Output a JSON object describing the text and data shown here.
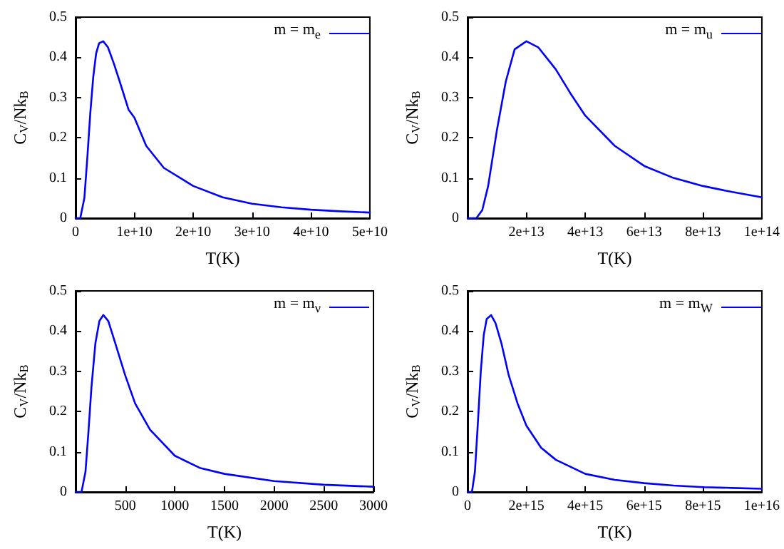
{
  "chart_data": [
    {
      "type": "line",
      "xlabel": "T(K)",
      "ylabel": "C$_{V}$/Nk$_{B}$",
      "legend": "top right",
      "grid": false,
      "marker": "none",
      "line_style": "solid",
      "xlim": [
        0,
        50000000000.0
      ],
      "xticks": [
        0,
        {
          "value": 10000000000.0,
          "label": "1e+10"
        },
        {
          "value": 20000000000.0,
          "label": "2e+10"
        },
        {
          "value": 30000000000.0,
          "label": "3e+10"
        },
        {
          "value": 40000000000.0,
          "label": "4e+10"
        },
        {
          "value": 50000000000.0,
          "label": "5e+10"
        }
      ],
      "ylim": [
        0,
        0.5
      ],
      "yticks": [
        0,
        0.1,
        0.2,
        0.3,
        0.4,
        0.5
      ],
      "series": [
        {
          "name": "m = m$_{e}$",
          "color": "#0000ff",
          "x": [
            0,
            800000000.0,
            1500000000.0,
            2000000000.0,
            2500000000.0,
            3000000000.0,
            3500000000.0,
            4000000000.0,
            4700000000.0,
            5500000000.0,
            6500000000.0,
            7500000000.0,
            9000000000.0,
            10000000000.0,
            12000000000.0,
            15000000000.0,
            20000000000.0,
            25000000000.0,
            30000000000.0,
            35000000000.0,
            40000000000.0,
            45000000000.0,
            50000000000.0
          ],
          "values": [
            0,
            0,
            0.05,
            0.15,
            0.26,
            0.35,
            0.41,
            0.435,
            0.44,
            0.425,
            0.385,
            0.34,
            0.27,
            0.25,
            0.18,
            0.125,
            0.08,
            0.052,
            0.036,
            0.027,
            0.021,
            0.017,
            0.014
          ]
        }
      ]
    },
    {
      "type": "line",
      "xlabel": "T(K)",
      "ylabel": "C$_{V}$/Nk$_{B}$",
      "legend": "top right",
      "grid": false,
      "marker": "none",
      "line_style": "solid",
      "xlim": [
        0,
        100000000000000.0
      ],
      "xticks": [
        {
          "value": 20000000000000.0,
          "label": "2e+13"
        },
        {
          "value": 40000000000000.0,
          "label": "4e+13"
        },
        {
          "value": 60000000000000.0,
          "label": "6e+13"
        },
        {
          "value": 80000000000000.0,
          "label": "8e+13"
        },
        {
          "value": 100000000000000.0,
          "label": "1e+14"
        }
      ],
      "ylim": [
        0,
        0.5
      ],
      "yticks": [
        0,
        0.1,
        0.2,
        0.3,
        0.4,
        0.5
      ],
      "series": [
        {
          "name": "m = m$_{u}$",
          "color": "#0000ff",
          "x": [
            0,
            3000000000000.0,
            5000000000000.0,
            7000000000000.0,
            10000000000000.0,
            13000000000000.0,
            16000000000000.0,
            20000000000000.0,
            24000000000000.0,
            30000000000000.0,
            35000000000000.0,
            40000000000000.0,
            50000000000000.0,
            60000000000000.0,
            70000000000000.0,
            80000000000000.0,
            90000000000000.0,
            100000000000000.0
          ],
          "values": [
            0,
            0,
            0.02,
            0.08,
            0.22,
            0.34,
            0.42,
            0.44,
            0.425,
            0.37,
            0.31,
            0.255,
            0.18,
            0.13,
            0.1,
            0.08,
            0.065,
            0.052
          ]
        }
      ]
    },
    {
      "type": "line",
      "xlabel": "T(K)",
      "ylabel": "C$_{V}$/Nk$_{B}$",
      "legend": "top right",
      "grid": false,
      "marker": "none",
      "line_style": "solid",
      "xlim": [
        0,
        3000
      ],
      "xticks": [
        500,
        1000,
        1500,
        2000,
        2500,
        3000
      ],
      "ylim": [
        0,
        0.5
      ],
      "yticks": [
        0,
        0.1,
        0.2,
        0.3,
        0.4,
        0.5
      ],
      "series": [
        {
          "name": "m = m$_{ν}$",
          "color": "#0000ff",
          "x": [
            0,
            60,
            100,
            130,
            160,
            200,
            240,
            280,
            330,
            400,
            500,
            600,
            750,
            1000,
            1250,
            1500,
            2000,
            2500,
            3000
          ],
          "values": [
            0,
            0,
            0.05,
            0.15,
            0.26,
            0.37,
            0.425,
            0.44,
            0.425,
            0.37,
            0.29,
            0.22,
            0.155,
            0.09,
            0.06,
            0.045,
            0.027,
            0.018,
            0.013
          ]
        }
      ]
    },
    {
      "type": "line",
      "xlabel": "T(K)",
      "ylabel": "C$_{V}$/Nk$_{B}$",
      "legend": "top right",
      "grid": false,
      "marker": "none",
      "line_style": "solid",
      "xlim": [
        0,
        1e+16
      ],
      "xticks": [
        0,
        {
          "value": 2000000000000000.0,
          "label": "2e+15"
        },
        {
          "value": 4000000000000000.0,
          "label": "4e+15"
        },
        {
          "value": 6000000000000000.0,
          "label": "6e+15"
        },
        {
          "value": 8000000000000000.0,
          "label": "8e+15"
        },
        {
          "value": 1e+16,
          "label": "1e+16"
        }
      ],
      "ylim": [
        0,
        0.5
      ],
      "yticks": [
        0,
        0.1,
        0.2,
        0.3,
        0.4,
        0.5
      ],
      "series": [
        {
          "name": "m = m$_{W}$",
          "color": "#0000ff",
          "x": [
            0,
            150000000000000.0,
            250000000000000.0,
            350000000000000.0,
            450000000000000.0,
            550000000000000.0,
            650000000000000.0,
            800000000000000.0,
            950000000000000.0,
            1150000000000000.0,
            1400000000000000.0,
            1700000000000000.0,
            2000000000000000.0,
            2500000000000000.0,
            3000000000000000.0,
            4000000000000000.0,
            5000000000000000.0,
            6000000000000000.0,
            7000000000000000.0,
            8000000000000000.0,
            9000000000000000.0,
            1e+16
          ],
          "values": [
            0,
            0,
            0.05,
            0.17,
            0.3,
            0.39,
            0.43,
            0.44,
            0.42,
            0.37,
            0.29,
            0.22,
            0.165,
            0.11,
            0.08,
            0.045,
            0.03,
            0.022,
            0.016,
            0.012,
            0.01,
            0.008
          ]
        }
      ]
    }
  ]
}
